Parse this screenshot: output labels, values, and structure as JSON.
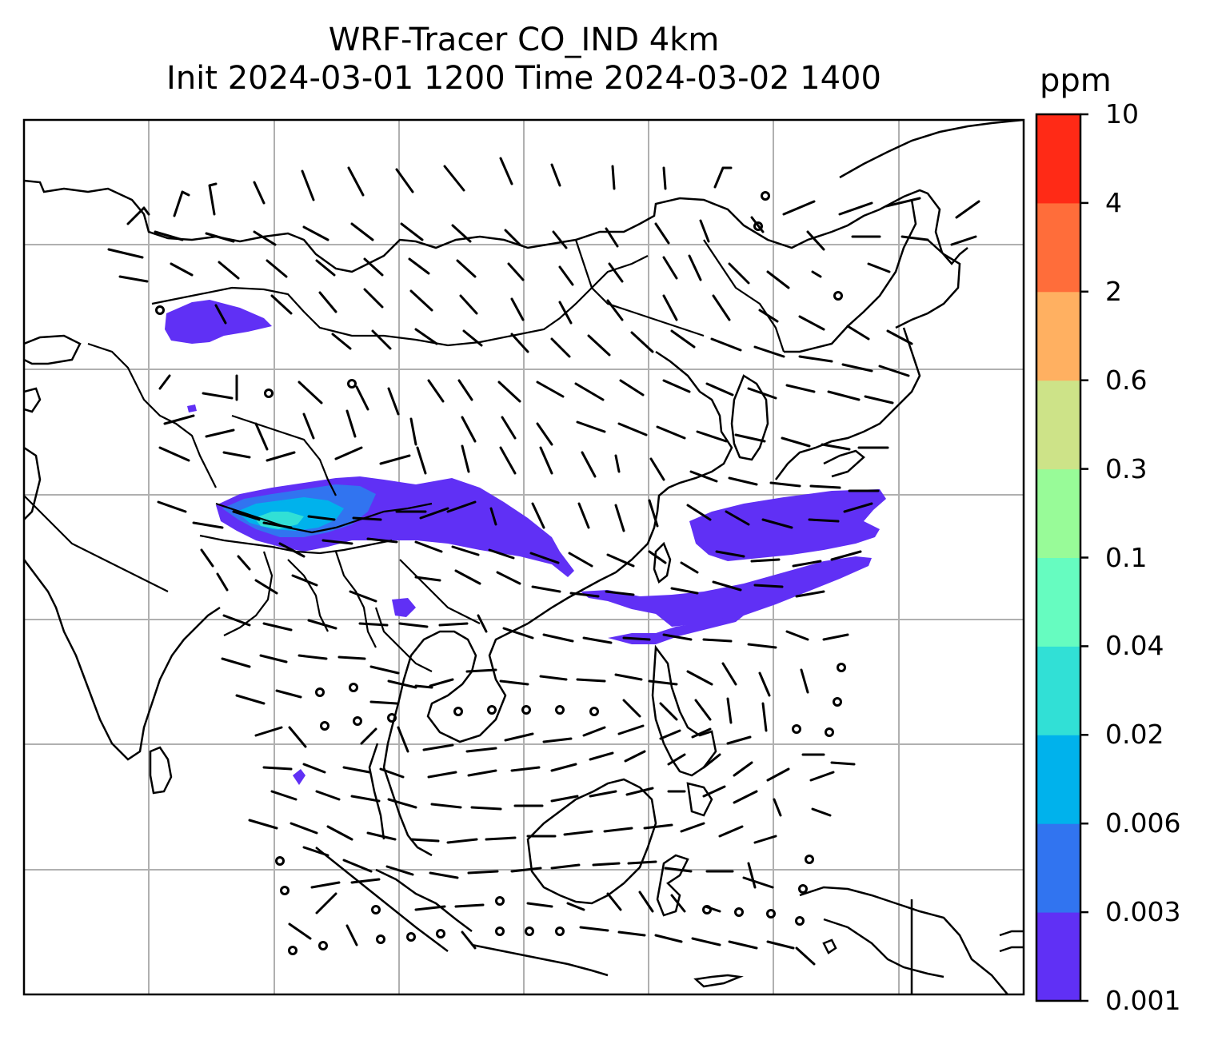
{
  "title": {
    "line1": "WRF-Tracer CO_IND 4km",
    "line2": "Init 2024-03-01 1200 Time 2024-03-02 1400"
  },
  "colorbar": {
    "unit": "ppm",
    "levels": [
      "0.001",
      "0.003",
      "0.006",
      "0.02",
      "0.04",
      "0.1",
      "0.3",
      "0.6",
      "2",
      "4",
      "10"
    ],
    "colors": [
      "#6030f5",
      "#3174f0",
      "#00b2ec",
      "#31e0d6",
      "#66fcc0",
      "#98fb98",
      "#cde388",
      "#ffb061",
      "#ff6d3a",
      "#ff2a16"
    ]
  },
  "map": {
    "projection_grid": "lat/lon gridlines",
    "features": [
      "coastlines",
      "country borders",
      "wind barbs",
      "CO_IND tracer concentration"
    ]
  }
}
